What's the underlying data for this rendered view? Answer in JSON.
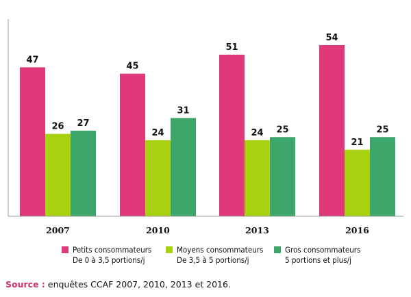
{
  "chart_data": {
    "type": "bar",
    "categories": [
      "2007",
      "2010",
      "2013",
      "2016"
    ],
    "series": [
      {
        "name": "Petits consommateurs",
        "sub": "De 0 à 3,5 portions/j",
        "color": "#e0397a",
        "values": [
          47,
          45,
          51,
          54
        ],
        "labels": [
          "47",
          "45",
          "51",
          "54"
        ]
      },
      {
        "name": "Moyens consommateurs",
        "sub": "De 3,5 à 5 portions/j",
        "color": "#a8d210",
        "values": [
          26,
          24,
          24,
          21
        ],
        "labels": [
          "26",
          "24",
          "24",
          "21"
        ]
      },
      {
        "name": "Gros consommateurs",
        "sub": "5  portions et plus/j",
        "color": "#3da66b",
        "values": [
          27,
          31,
          25,
          25
        ],
        "labels": [
          "27",
          "31",
          "25",
          "25"
        ]
      }
    ],
    "title": "",
    "xlabel": "",
    "ylabel": "",
    "ylim": [
      0,
      60
    ],
    "grid": false,
    "legend_position": "bottom"
  },
  "source": {
    "label": "Source :",
    "text": " enquêtes CCAF 2007, 2010, 2013 et 2016."
  }
}
